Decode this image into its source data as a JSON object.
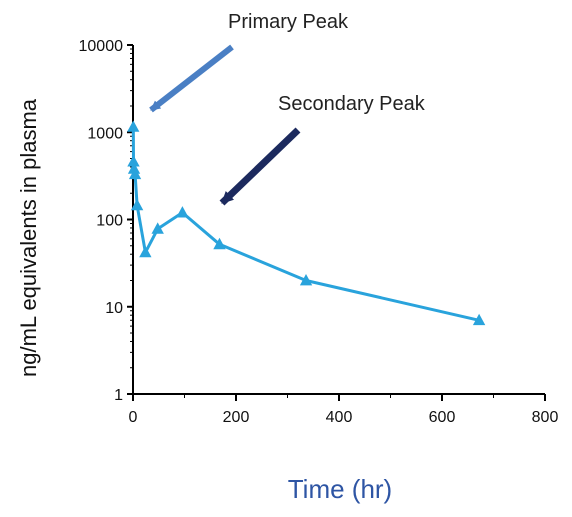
{
  "chart_data": {
    "type": "line",
    "title": "",
    "xlabel": "Time (hr)",
    "ylabel": "ng/mL equivalents in plasma",
    "x_scale": "linear",
    "y_scale": "log",
    "xlim": [
      0,
      800
    ],
    "ylim": [
      1,
      10000
    ],
    "x_ticks": [
      "0",
      "200",
      "400",
      "600",
      "800"
    ],
    "y_ticks": [
      "1",
      "10",
      "100",
      "1000",
      "10000"
    ],
    "x_tick_values": [
      0,
      200,
      400,
      600,
      800
    ],
    "y_tick_values": [
      1,
      10,
      100,
      1000,
      10000
    ],
    "grid": false,
    "legend": "none",
    "series": [
      {
        "marker": "triangle",
        "color": "#29a3dc",
        "x": [
          0.5,
          1,
          2,
          4,
          8,
          24,
          48,
          96,
          168,
          336,
          672
        ],
        "y": [
          1150,
          460,
          380,
          330,
          145,
          42,
          78,
          120,
          52,
          20,
          7
        ]
      }
    ],
    "annotations": [
      {
        "text": "Primary Peak",
        "arrow_color": "#4a7fc4"
      },
      {
        "text": "Secondary Peak",
        "arrow_color": "#1c2a5e"
      }
    ],
    "colors": {
      "axis": "#000000",
      "xlabel": "#2e55a4"
    }
  }
}
